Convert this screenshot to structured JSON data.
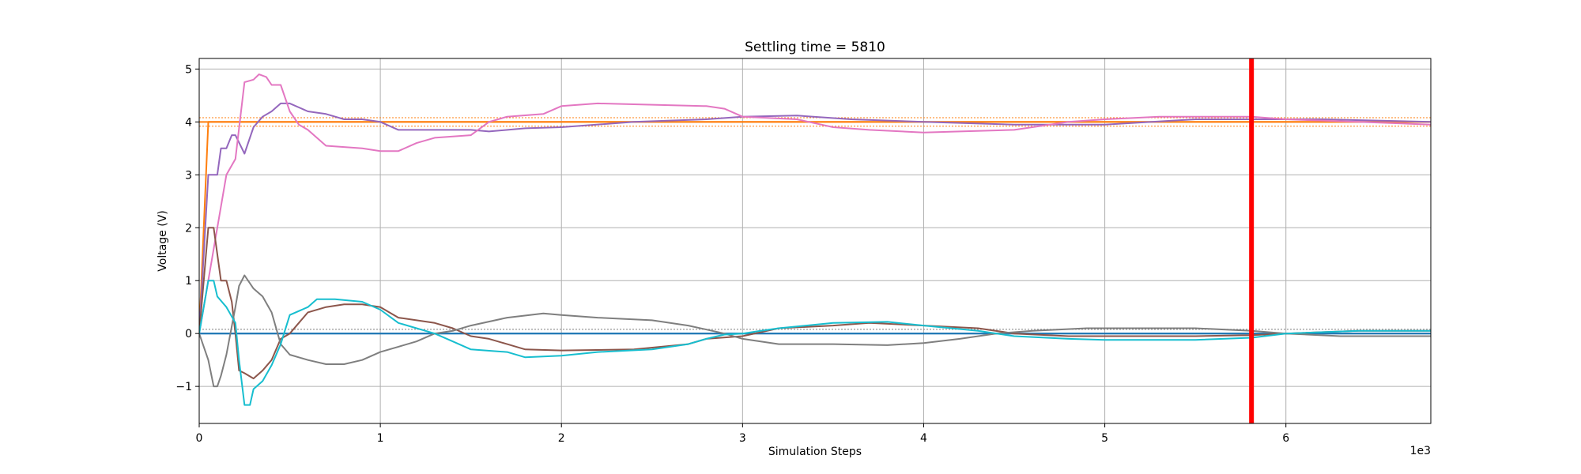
{
  "chart_data": {
    "type": "line",
    "title": "Settling time = 5810",
    "xlabel": "Simulation Steps",
    "ylabel": "Voltage (V)",
    "x_offset_label": "1e3",
    "xlim": [
      0,
      6.8
    ],
    "ylim": [
      -1.7,
      5.2
    ],
    "x_ticks": [
      0,
      1,
      2,
      3,
      4,
      5,
      6
    ],
    "x_tick_labels": [
      "0",
      "1",
      "2",
      "3",
      "4",
      "5",
      "6"
    ],
    "y_ticks": [
      -1,
      0,
      1,
      2,
      3,
      4,
      5
    ],
    "y_tick_labels": [
      "−1",
      "0",
      "1",
      "2",
      "3",
      "4",
      "5"
    ],
    "grid": true,
    "settling_time": {
      "x": 5.81,
      "color": "#ff0000"
    },
    "reference_lines": [
      {
        "y": 4.08,
        "color": "#ff7f0e",
        "style": "dotted"
      },
      {
        "y": 3.92,
        "color": "#ff7f0e",
        "style": "dotted"
      },
      {
        "y": 0.08,
        "color": "#7f7f7f",
        "style": "dotted"
      },
      {
        "y": 4.0,
        "color": "#ff7f0e",
        "style": "solid"
      },
      {
        "y": 0.0,
        "color": "#1f77b4",
        "style": "solid"
      }
    ],
    "series": [
      {
        "color": "#ff7f0e",
        "points": [
          [
            0,
            0
          ],
          [
            0.05,
            4
          ],
          [
            6.8,
            4
          ]
        ]
      },
      {
        "color": "#1f77b4",
        "points": [
          [
            0,
            0
          ],
          [
            6.8,
            0
          ]
        ]
      },
      {
        "color": "#9467bd",
        "points": [
          [
            0,
            0
          ],
          [
            0.05,
            3
          ],
          [
            0.1,
            3
          ],
          [
            0.12,
            3.5
          ],
          [
            0.15,
            3.5
          ],
          [
            0.18,
            3.75
          ],
          [
            0.2,
            3.75
          ],
          [
            0.25,
            3.4
          ],
          [
            0.3,
            3.9
          ],
          [
            0.35,
            4.1
          ],
          [
            0.4,
            4.2
          ],
          [
            0.45,
            4.35
          ],
          [
            0.5,
            4.35
          ],
          [
            0.6,
            4.2
          ],
          [
            0.7,
            4.15
          ],
          [
            0.8,
            4.05
          ],
          [
            0.9,
            4.05
          ],
          [
            1.0,
            4.0
          ],
          [
            1.1,
            3.85
          ],
          [
            1.5,
            3.85
          ],
          [
            1.6,
            3.82
          ],
          [
            1.8,
            3.88
          ],
          [
            2.0,
            3.9
          ],
          [
            2.4,
            4.0
          ],
          [
            2.8,
            4.05
          ],
          [
            3.0,
            4.1
          ],
          [
            3.3,
            4.12
          ],
          [
            3.6,
            4.05
          ],
          [
            4.0,
            4.0
          ],
          [
            4.5,
            3.95
          ],
          [
            5.0,
            3.95
          ],
          [
            5.5,
            4.05
          ],
          [
            5.81,
            4.05
          ],
          [
            6.2,
            4.05
          ],
          [
            6.8,
            4.0
          ]
        ]
      },
      {
        "color": "#e377c2",
        "points": [
          [
            0,
            0
          ],
          [
            0.1,
            2.0
          ],
          [
            0.15,
            3.0
          ],
          [
            0.2,
            3.3
          ],
          [
            0.25,
            4.75
          ],
          [
            0.3,
            4.8
          ],
          [
            0.33,
            4.9
          ],
          [
            0.37,
            4.85
          ],
          [
            0.4,
            4.7
          ],
          [
            0.45,
            4.7
          ],
          [
            0.5,
            4.2
          ],
          [
            0.55,
            3.95
          ],
          [
            0.6,
            3.85
          ],
          [
            0.7,
            3.55
          ],
          [
            0.9,
            3.5
          ],
          [
            1.0,
            3.45
          ],
          [
            1.1,
            3.45
          ],
          [
            1.2,
            3.6
          ],
          [
            1.3,
            3.7
          ],
          [
            1.5,
            3.75
          ],
          [
            1.6,
            4.0
          ],
          [
            1.7,
            4.1
          ],
          [
            1.9,
            4.15
          ],
          [
            2.0,
            4.3
          ],
          [
            2.2,
            4.35
          ],
          [
            2.8,
            4.3
          ],
          [
            2.9,
            4.25
          ],
          [
            3.0,
            4.1
          ],
          [
            3.3,
            4.05
          ],
          [
            3.5,
            3.9
          ],
          [
            3.7,
            3.85
          ],
          [
            4.0,
            3.8
          ],
          [
            4.2,
            3.82
          ],
          [
            4.5,
            3.85
          ],
          [
            4.8,
            4.0
          ],
          [
            5.0,
            4.05
          ],
          [
            5.3,
            4.1
          ],
          [
            5.81,
            4.1
          ],
          [
            6.0,
            4.05
          ],
          [
            6.4,
            4.0
          ],
          [
            6.8,
            3.95
          ]
        ]
      },
      {
        "color": "#8c564b",
        "points": [
          [
            0,
            0
          ],
          [
            0.05,
            2.0
          ],
          [
            0.08,
            2.0
          ],
          [
            0.1,
            1.5
          ],
          [
            0.12,
            1.0
          ],
          [
            0.15,
            1.0
          ],
          [
            0.18,
            0.6
          ],
          [
            0.2,
            0.0
          ],
          [
            0.22,
            -0.7
          ],
          [
            0.25,
            -0.75
          ],
          [
            0.3,
            -0.85
          ],
          [
            0.35,
            -0.7
          ],
          [
            0.4,
            -0.5
          ],
          [
            0.45,
            -0.1
          ],
          [
            0.5,
            0.0
          ],
          [
            0.55,
            0.2
          ],
          [
            0.6,
            0.4
          ],
          [
            0.7,
            0.5
          ],
          [
            0.8,
            0.55
          ],
          [
            0.9,
            0.55
          ],
          [
            1.0,
            0.5
          ],
          [
            1.1,
            0.3
          ],
          [
            1.2,
            0.25
          ],
          [
            1.3,
            0.2
          ],
          [
            1.4,
            0.1
          ],
          [
            1.5,
            -0.05
          ],
          [
            1.6,
            -0.1
          ],
          [
            1.7,
            -0.2
          ],
          [
            1.8,
            -0.3
          ],
          [
            2.0,
            -0.32
          ],
          [
            2.4,
            -0.3
          ],
          [
            2.7,
            -0.2
          ],
          [
            2.8,
            -0.1
          ],
          [
            3.0,
            -0.05
          ],
          [
            3.2,
            0.1
          ],
          [
            3.5,
            0.15
          ],
          [
            3.7,
            0.2
          ],
          [
            4.0,
            0.15
          ],
          [
            4.3,
            0.1
          ],
          [
            4.5,
            0.0
          ],
          [
            4.8,
            -0.05
          ],
          [
            5.0,
            -0.05
          ],
          [
            5.5,
            -0.05
          ],
          [
            5.81,
            -0.03
          ],
          [
            6.0,
            0.0
          ],
          [
            6.4,
            0.05
          ],
          [
            6.8,
            0.05
          ]
        ]
      },
      {
        "color": "#7f7f7f",
        "points": [
          [
            0,
            0
          ],
          [
            0.05,
            -0.5
          ],
          [
            0.08,
            -1.0
          ],
          [
            0.1,
            -1.0
          ],
          [
            0.12,
            -0.8
          ],
          [
            0.15,
            -0.4
          ],
          [
            0.2,
            0.5
          ],
          [
            0.22,
            0.9
          ],
          [
            0.25,
            1.1
          ],
          [
            0.3,
            0.85
          ],
          [
            0.35,
            0.7
          ],
          [
            0.4,
            0.4
          ],
          [
            0.45,
            -0.2
          ],
          [
            0.5,
            -0.4
          ],
          [
            0.6,
            -0.5
          ],
          [
            0.7,
            -0.58
          ],
          [
            0.8,
            -0.58
          ],
          [
            0.9,
            -0.5
          ],
          [
            1.0,
            -0.35
          ],
          [
            1.1,
            -0.25
          ],
          [
            1.2,
            -0.15
          ],
          [
            1.3,
            0.0
          ],
          [
            1.4,
            0.05
          ],
          [
            1.5,
            0.15
          ],
          [
            1.7,
            0.3
          ],
          [
            1.9,
            0.38
          ],
          [
            2.0,
            0.35
          ],
          [
            2.2,
            0.3
          ],
          [
            2.5,
            0.25
          ],
          [
            2.7,
            0.15
          ],
          [
            2.9,
            0.0
          ],
          [
            3.0,
            -0.1
          ],
          [
            3.2,
            -0.2
          ],
          [
            3.5,
            -0.2
          ],
          [
            3.8,
            -0.22
          ],
          [
            4.0,
            -0.18
          ],
          [
            4.2,
            -0.1
          ],
          [
            4.4,
            0.0
          ],
          [
            4.6,
            0.05
          ],
          [
            4.9,
            0.1
          ],
          [
            5.2,
            0.1
          ],
          [
            5.5,
            0.1
          ],
          [
            5.81,
            0.05
          ],
          [
            6.0,
            0.0
          ],
          [
            6.3,
            -0.05
          ],
          [
            6.8,
            -0.05
          ]
        ]
      },
      {
        "color": "#17becf",
        "points": [
          [
            0,
            0
          ],
          [
            0.05,
            1.0
          ],
          [
            0.08,
            1.0
          ],
          [
            0.1,
            0.7
          ],
          [
            0.15,
            0.5
          ],
          [
            0.2,
            0.2
          ],
          [
            0.22,
            -0.5
          ],
          [
            0.25,
            -1.35
          ],
          [
            0.28,
            -1.35
          ],
          [
            0.3,
            -1.05
          ],
          [
            0.35,
            -0.9
          ],
          [
            0.4,
            -0.6
          ],
          [
            0.45,
            -0.2
          ],
          [
            0.5,
            0.35
          ],
          [
            0.6,
            0.5
          ],
          [
            0.65,
            0.65
          ],
          [
            0.75,
            0.65
          ],
          [
            0.9,
            0.6
          ],
          [
            1.0,
            0.45
          ],
          [
            1.1,
            0.2
          ],
          [
            1.2,
            0.1
          ],
          [
            1.3,
            0.0
          ],
          [
            1.4,
            -0.15
          ],
          [
            1.5,
            -0.3
          ],
          [
            1.7,
            -0.35
          ],
          [
            1.8,
            -0.45
          ],
          [
            2.0,
            -0.42
          ],
          [
            2.2,
            -0.35
          ],
          [
            2.5,
            -0.3
          ],
          [
            2.7,
            -0.2
          ],
          [
            2.8,
            -0.1
          ],
          [
            2.9,
            -0.02
          ],
          [
            3.0,
            0.0
          ],
          [
            3.1,
            0.05
          ],
          [
            3.2,
            0.1
          ],
          [
            3.5,
            0.2
          ],
          [
            3.8,
            0.22
          ],
          [
            4.0,
            0.15
          ],
          [
            4.3,
            0.05
          ],
          [
            4.5,
            -0.05
          ],
          [
            4.8,
            -0.1
          ],
          [
            5.0,
            -0.12
          ],
          [
            5.5,
            -0.12
          ],
          [
            5.81,
            -0.08
          ],
          [
            6.0,
            0.0
          ],
          [
            6.4,
            0.05
          ],
          [
            6.8,
            0.05
          ]
        ]
      }
    ]
  }
}
